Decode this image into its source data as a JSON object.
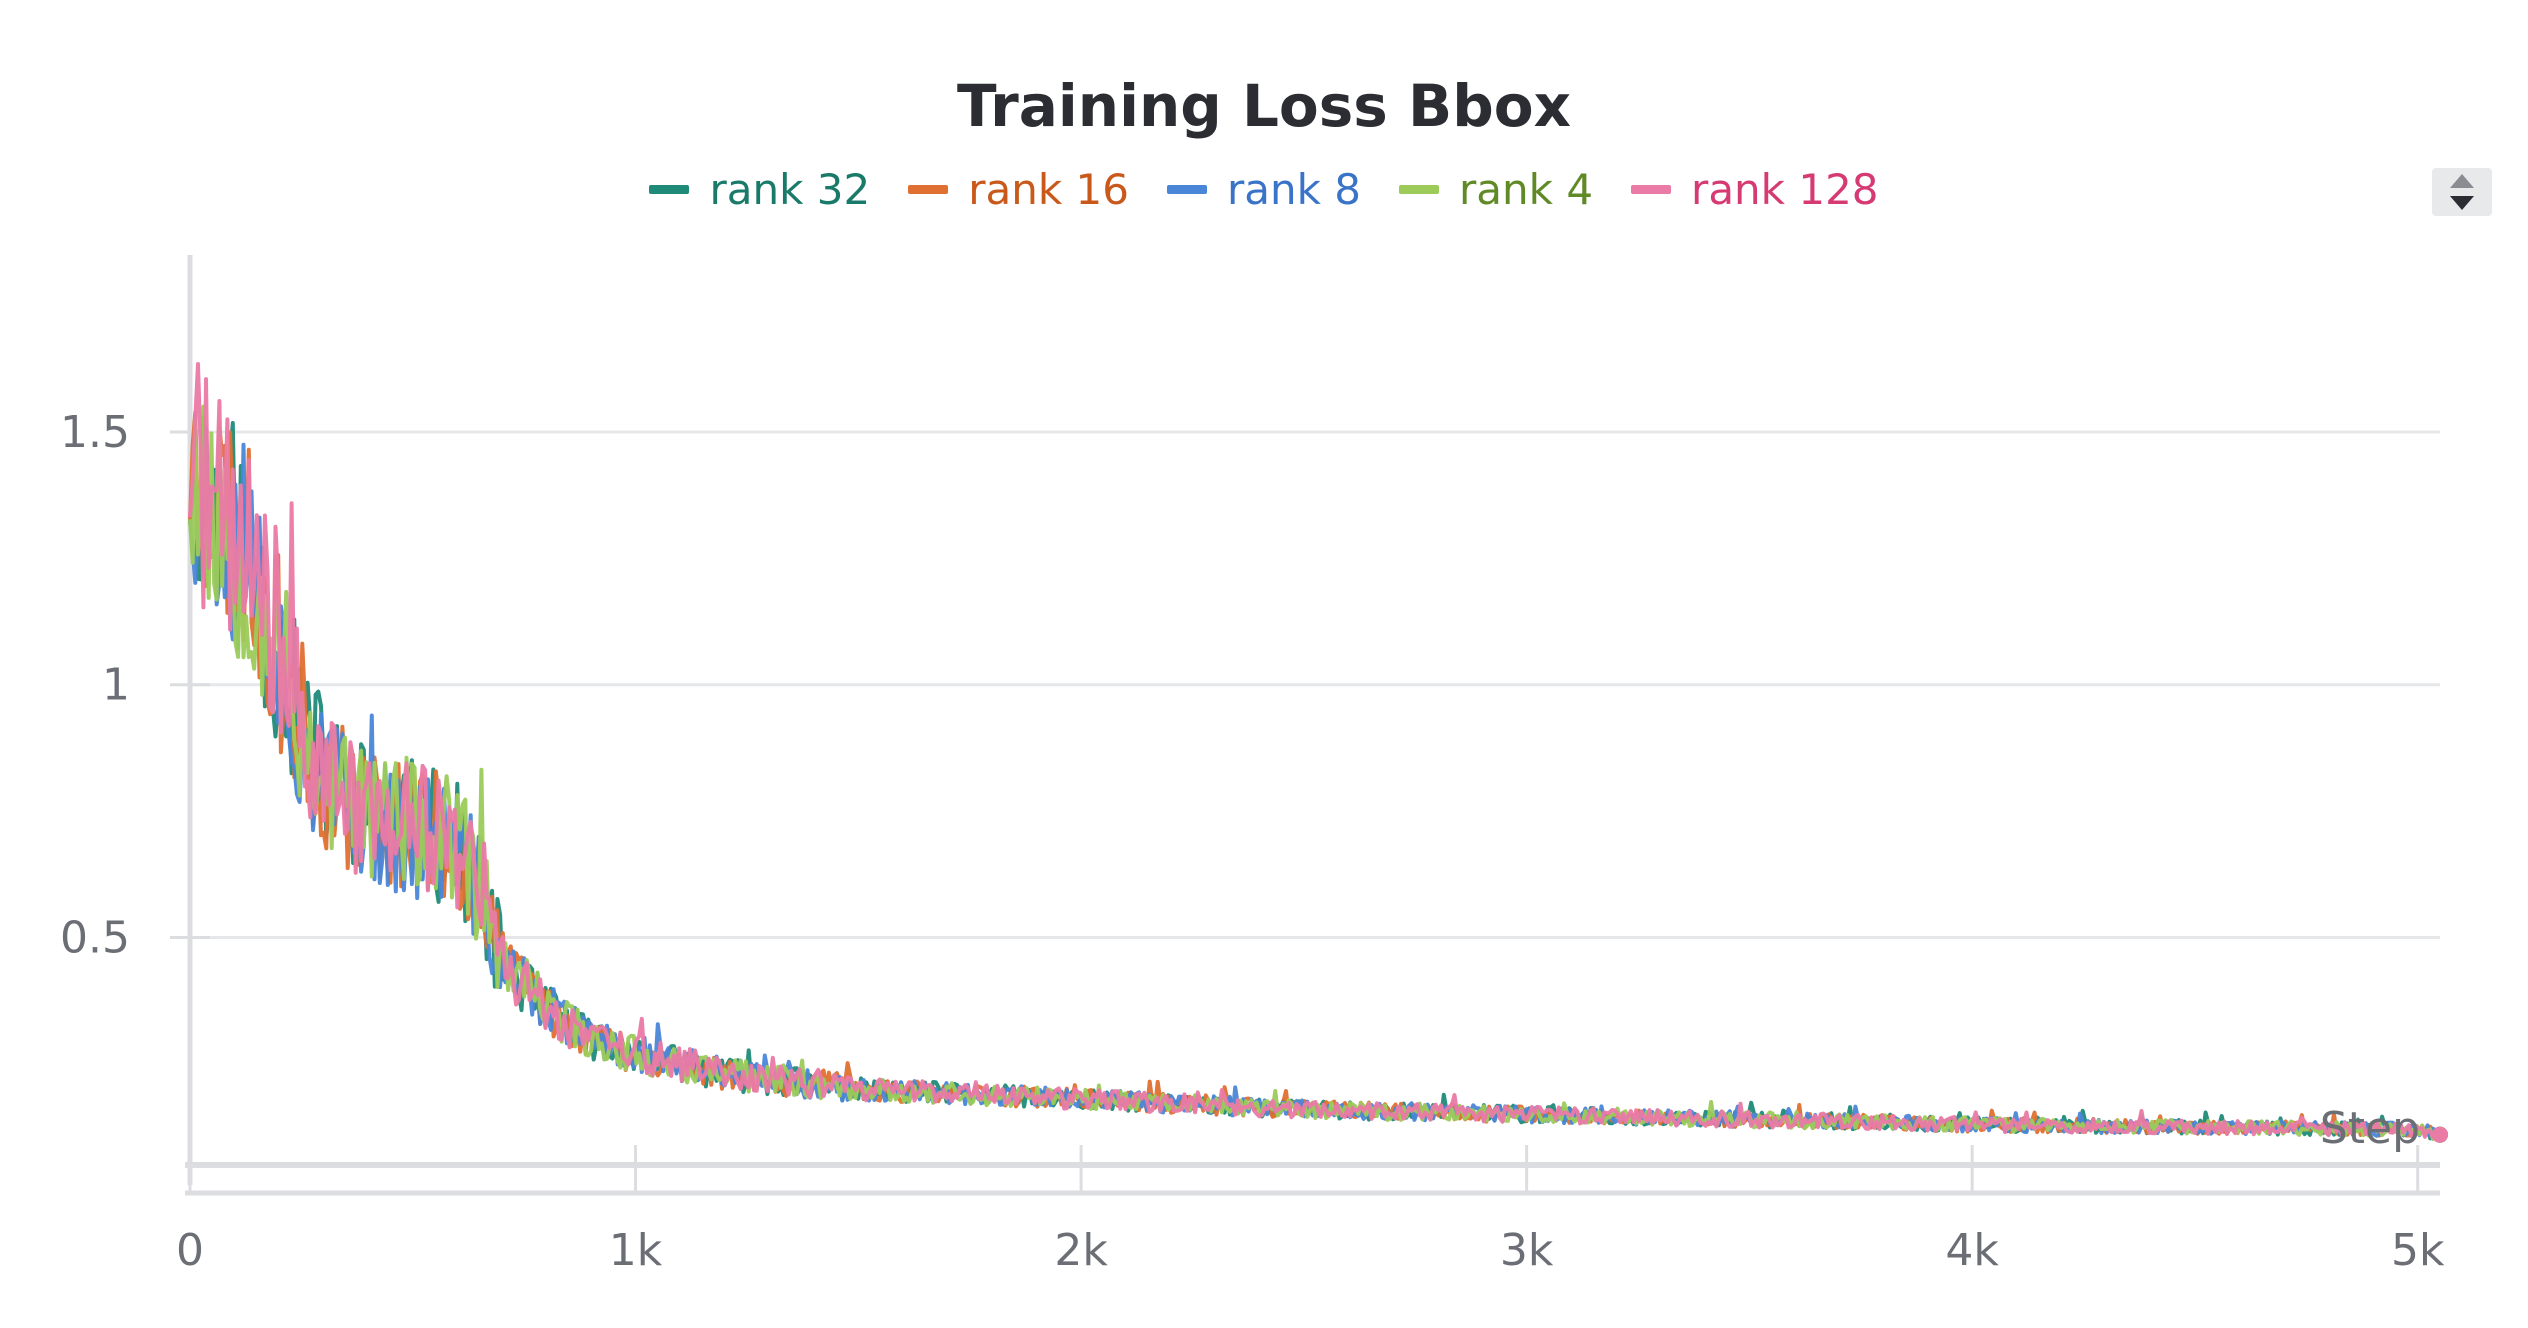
{
  "chart_data": {
    "type": "line",
    "title": "Training Loss Bbox",
    "xlabel": "Step",
    "ylabel": "",
    "xlim": [
      0,
      5050
    ],
    "ylim": [
      0.05,
      1.85
    ],
    "x_ticks": [
      0,
      1000,
      2000,
      3000,
      4000,
      5000
    ],
    "x_tick_labels": [
      "0",
      "1k",
      "2k",
      "3k",
      "4k",
      "5k"
    ],
    "y_ticks": [
      0.5,
      1,
      1.5
    ],
    "y_tick_labels": [
      "0.5",
      "1",
      "1.5"
    ],
    "grid": true,
    "legend_position": "top-center",
    "series": [
      {
        "name": "rank 32",
        "color": "#1f8a78",
        "text_color": "#1a7a6a",
        "seed": 11,
        "points": [
          [
            0,
            1.45
          ],
          [
            50,
            1.35
          ],
          [
            100,
            1.3
          ],
          [
            150,
            1.2
          ],
          [
            200,
            1.05
          ],
          [
            250,
            0.92
          ],
          [
            300,
            0.82
          ],
          [
            400,
            0.75
          ],
          [
            500,
            0.72
          ],
          [
            600,
            0.68
          ],
          [
            650,
            0.6
          ],
          [
            700,
            0.45
          ],
          [
            800,
            0.36
          ],
          [
            900,
            0.3
          ],
          [
            1000,
            0.27
          ],
          [
            1200,
            0.23
          ],
          [
            1500,
            0.2
          ],
          [
            2000,
            0.18
          ],
          [
            2500,
            0.16
          ],
          [
            3000,
            0.15
          ],
          [
            3500,
            0.14
          ],
          [
            4000,
            0.13
          ],
          [
            4500,
            0.125
          ],
          [
            5000,
            0.12
          ],
          [
            5050,
            0.11
          ]
        ]
      },
      {
        "name": "rank 16",
        "color": "#e07031",
        "text_color": "#c9581b",
        "seed": 23,
        "points": [
          [
            0,
            1.45
          ],
          [
            50,
            1.38
          ],
          [
            100,
            1.32
          ],
          [
            150,
            1.22
          ],
          [
            200,
            1.06
          ],
          [
            250,
            0.92
          ],
          [
            300,
            0.82
          ],
          [
            400,
            0.75
          ],
          [
            500,
            0.72
          ],
          [
            600,
            0.68
          ],
          [
            650,
            0.6
          ],
          [
            700,
            0.45
          ],
          [
            800,
            0.36
          ],
          [
            900,
            0.3
          ],
          [
            1000,
            0.27
          ],
          [
            1200,
            0.23
          ],
          [
            1500,
            0.2
          ],
          [
            2000,
            0.18
          ],
          [
            2500,
            0.16
          ],
          [
            3000,
            0.15
          ],
          [
            3500,
            0.14
          ],
          [
            4000,
            0.13
          ],
          [
            4500,
            0.125
          ],
          [
            5000,
            0.12
          ],
          [
            5050,
            0.11
          ]
        ]
      },
      {
        "name": "rank 8",
        "color": "#4a86d8",
        "text_color": "#3a74c8",
        "seed": 37,
        "points": [
          [
            0,
            1.45
          ],
          [
            50,
            1.36
          ],
          [
            100,
            1.31
          ],
          [
            150,
            1.24
          ],
          [
            200,
            1.04
          ],
          [
            250,
            0.9
          ],
          [
            300,
            0.8
          ],
          [
            400,
            0.74
          ],
          [
            500,
            0.71
          ],
          [
            600,
            0.67
          ],
          [
            650,
            0.6
          ],
          [
            700,
            0.45
          ],
          [
            800,
            0.36
          ],
          [
            900,
            0.3
          ],
          [
            1000,
            0.27
          ],
          [
            1200,
            0.23
          ],
          [
            1500,
            0.2
          ],
          [
            2000,
            0.18
          ],
          [
            2500,
            0.16
          ],
          [
            3000,
            0.15
          ],
          [
            3500,
            0.14
          ],
          [
            4000,
            0.13
          ],
          [
            4500,
            0.125
          ],
          [
            5000,
            0.12
          ],
          [
            5050,
            0.11
          ]
        ]
      },
      {
        "name": "rank 4",
        "color": "#9ccb5a",
        "text_color": "#5f8a26",
        "seed": 53,
        "points": [
          [
            0,
            1.45
          ],
          [
            50,
            1.34
          ],
          [
            100,
            1.29
          ],
          [
            150,
            1.2
          ],
          [
            200,
            1.05
          ],
          [
            250,
            0.91
          ],
          [
            300,
            0.81
          ],
          [
            400,
            0.76
          ],
          [
            500,
            0.72
          ],
          [
            600,
            0.68
          ],
          [
            650,
            0.6
          ],
          [
            700,
            0.45
          ],
          [
            800,
            0.36
          ],
          [
            900,
            0.3
          ],
          [
            1000,
            0.27
          ],
          [
            1200,
            0.23
          ],
          [
            1500,
            0.2
          ],
          [
            2000,
            0.18
          ],
          [
            2500,
            0.16
          ],
          [
            3000,
            0.15
          ],
          [
            3500,
            0.14
          ],
          [
            4000,
            0.13
          ],
          [
            4500,
            0.125
          ],
          [
            5000,
            0.12
          ],
          [
            5050,
            0.11
          ]
        ]
      },
      {
        "name": "rank 128",
        "color": "#ea7aa6",
        "text_color": "#d63a73",
        "seed": 71,
        "points": [
          [
            0,
            1.45
          ],
          [
            50,
            1.35
          ],
          [
            100,
            1.3
          ],
          [
            150,
            1.21
          ],
          [
            200,
            1.05
          ],
          [
            250,
            0.92
          ],
          [
            300,
            0.82
          ],
          [
            400,
            0.75
          ],
          [
            500,
            0.72
          ],
          [
            600,
            0.69
          ],
          [
            650,
            0.6
          ],
          [
            700,
            0.45
          ],
          [
            800,
            0.36
          ],
          [
            900,
            0.3
          ],
          [
            1000,
            0.27
          ],
          [
            1200,
            0.23
          ],
          [
            1500,
            0.2
          ],
          [
            2000,
            0.18
          ],
          [
            2500,
            0.16
          ],
          [
            3000,
            0.15
          ],
          [
            3500,
            0.14
          ],
          [
            4000,
            0.13
          ],
          [
            4500,
            0.125
          ],
          [
            5000,
            0.12
          ],
          [
            5050,
            0.11
          ]
        ]
      }
    ]
  }
}
